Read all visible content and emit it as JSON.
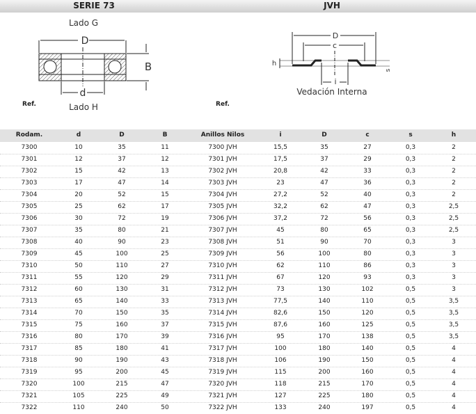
{
  "header": {
    "left": "SERIE 73",
    "right": "JVH"
  },
  "diagram_left": {
    "top_label": "Lado G",
    "outer": "D",
    "width": "B",
    "inner": "d",
    "bottom_label": "Lado H"
  },
  "diagram_right": {
    "outer": "D",
    "mid": "c",
    "height": "h",
    "inner": "i",
    "thickness": "s",
    "caption": "Vedación Interna"
  },
  "table": {
    "group_headers": [
      "Ref.",
      "Ref."
    ],
    "columns": [
      "Rodam.",
      "d",
      "D",
      "B",
      "Anillos Nilos",
      "i",
      "D",
      "c",
      "s",
      "h"
    ],
    "rows": [
      [
        "7300",
        "10",
        "35",
        "11",
        "7300 JVH",
        "15,5",
        "35",
        "27",
        "0,3",
        "2"
      ],
      [
        "7301",
        "12",
        "37",
        "12",
        "7301 JVH",
        "17,5",
        "37",
        "29",
        "0,3",
        "2"
      ],
      [
        "7302",
        "15",
        "42",
        "13",
        "7302 JVH",
        "20,8",
        "42",
        "33",
        "0,3",
        "2"
      ],
      [
        "7303",
        "17",
        "47",
        "14",
        "7303 JVH",
        "23",
        "47",
        "36",
        "0,3",
        "2"
      ],
      [
        "7304",
        "20",
        "52",
        "15",
        "7304 JVH",
        "27,2",
        "52",
        "40",
        "0,3",
        "2"
      ],
      [
        "7305",
        "25",
        "62",
        "17",
        "7305 JVH",
        "32,2",
        "62",
        "47",
        "0,3",
        "2,5"
      ],
      [
        "7306",
        "30",
        "72",
        "19",
        "7306 JVH",
        "37,2",
        "72",
        "56",
        "0,3",
        "2,5"
      ],
      [
        "7307",
        "35",
        "80",
        "21",
        "7307 JVH",
        "45",
        "80",
        "65",
        "0,3",
        "2,5"
      ],
      [
        "7308",
        "40",
        "90",
        "23",
        "7308 JVH",
        "51",
        "90",
        "70",
        "0,3",
        "3"
      ],
      [
        "7309",
        "45",
        "100",
        "25",
        "7309 JVH",
        "56",
        "100",
        "80",
        "0,3",
        "3"
      ],
      [
        "7310",
        "50",
        "110",
        "27",
        "7310 JVH",
        "62",
        "110",
        "86",
        "0,3",
        "3"
      ],
      [
        "7311",
        "55",
        "120",
        "29",
        "7311 JVH",
        "67",
        "120",
        "93",
        "0,3",
        "3"
      ],
      [
        "7312",
        "60",
        "130",
        "31",
        "7312 JVH",
        "73",
        "130",
        "102",
        "0,5",
        "3"
      ],
      [
        "7313",
        "65",
        "140",
        "33",
        "7313 JVH",
        "77,5",
        "140",
        "110",
        "0,5",
        "3,5"
      ],
      [
        "7314",
        "70",
        "150",
        "35",
        "7314 JVH",
        "82,6",
        "150",
        "120",
        "0,5",
        "3,5"
      ],
      [
        "7315",
        "75",
        "160",
        "37",
        "7315 JVH",
        "87,6",
        "160",
        "125",
        "0,5",
        "3,5"
      ],
      [
        "7316",
        "80",
        "170",
        "39",
        "7316 JVH",
        "95",
        "170",
        "138",
        "0,5",
        "3,5"
      ],
      [
        "7317",
        "85",
        "180",
        "41",
        "7317 JVH",
        "100",
        "180",
        "140",
        "0,5",
        "4"
      ],
      [
        "7318",
        "90",
        "190",
        "43",
        "7318 JVH",
        "106",
        "190",
        "150",
        "0,5",
        "4"
      ],
      [
        "7319",
        "95",
        "200",
        "45",
        "7319 JVH",
        "115",
        "200",
        "160",
        "0,5",
        "4"
      ],
      [
        "7320",
        "100",
        "215",
        "47",
        "7320 JVH",
        "118",
        "215",
        "170",
        "0,5",
        "4"
      ],
      [
        "7321",
        "105",
        "225",
        "49",
        "7321 JVH",
        "127",
        "225",
        "180",
        "0,5",
        "4"
      ],
      [
        "7322",
        "110",
        "240",
        "50",
        "7322 JVH",
        "133",
        "240",
        "197",
        "0,5",
        "4"
      ]
    ]
  }
}
